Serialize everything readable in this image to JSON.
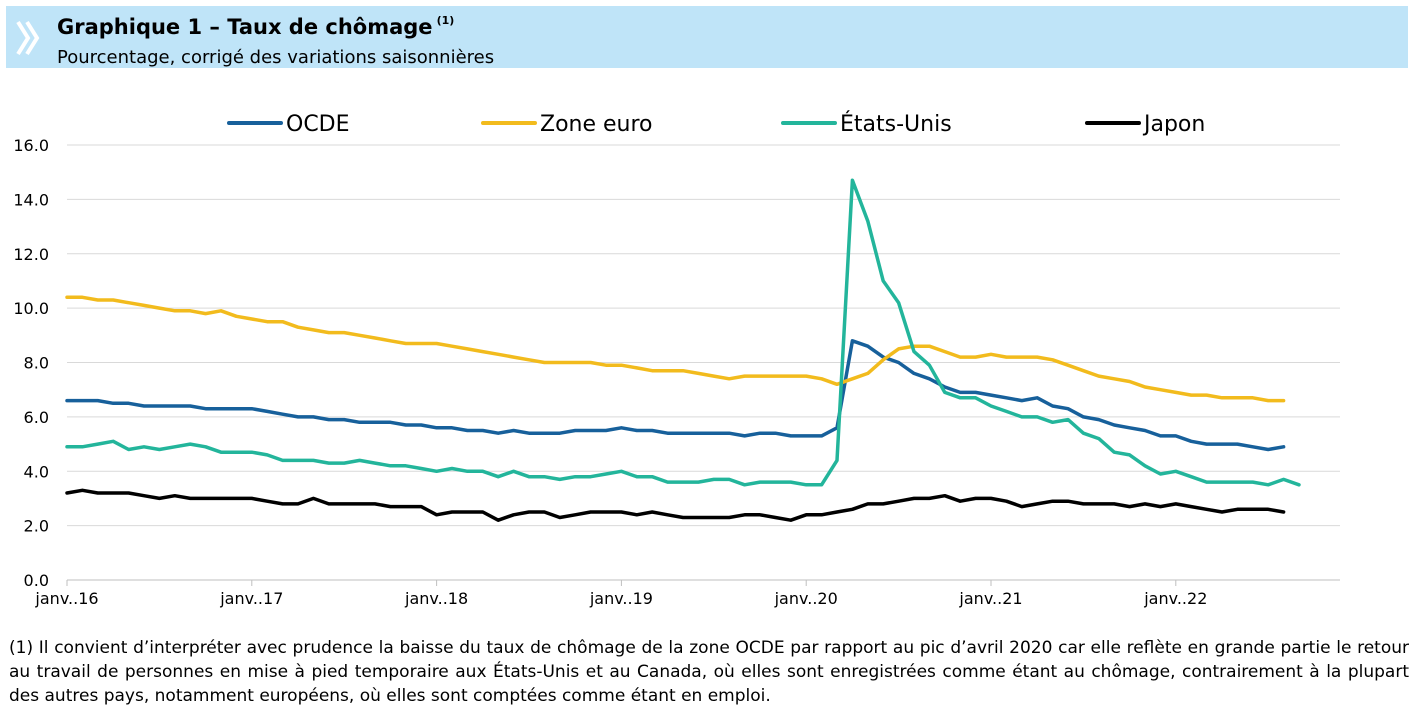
{
  "header": {
    "title": "Graphique 1 – Taux de chômage",
    "title_note": "(1)",
    "subtitle": "Pourcentage, corrigé des variations saisonnières",
    "banner_color": "#bfe4f8"
  },
  "chart_data": {
    "type": "line",
    "title": "Graphique 1 – Taux de chômage (1)",
    "subtitle": "Pourcentage, corrigé des variations saisonnières",
    "x_start": "janv.16",
    "frequency": "monthly",
    "x_tick_labels": [
      "janv..16",
      "janv..17",
      "janv..18",
      "janv..19",
      "janv..20",
      "janv..21",
      "janv..22"
    ],
    "y_tick_labels": [
      "0.0",
      "2.0",
      "4.0",
      "6.0",
      "8.0",
      "10.0",
      "12.0",
      "14.0",
      "16.0"
    ],
    "ylim": [
      0,
      16
    ],
    "grid": true,
    "legend_position": "top",
    "series": [
      {
        "name": "OCDE",
        "color": "#17609b",
        "values": [
          6.6,
          6.6,
          6.6,
          6.5,
          6.5,
          6.4,
          6.4,
          6.4,
          6.4,
          6.3,
          6.3,
          6.3,
          6.3,
          6.2,
          6.1,
          6.0,
          6.0,
          5.9,
          5.9,
          5.8,
          5.8,
          5.8,
          5.7,
          5.7,
          5.6,
          5.6,
          5.5,
          5.5,
          5.4,
          5.5,
          5.4,
          5.4,
          5.4,
          5.5,
          5.5,
          5.5,
          5.6,
          5.5,
          5.5,
          5.4,
          5.4,
          5.4,
          5.4,
          5.4,
          5.3,
          5.4,
          5.4,
          5.3,
          5.3,
          5.3,
          5.6,
          8.8,
          8.6,
          8.2,
          8.0,
          7.6,
          7.4,
          7.1,
          6.9,
          6.9,
          6.8,
          6.7,
          6.6,
          6.7,
          6.4,
          6.3,
          6.0,
          5.9,
          5.7,
          5.6,
          5.5,
          5.3,
          5.3,
          5.1,
          5.0,
          5.0,
          5.0,
          4.9,
          4.8,
          4.9
        ]
      },
      {
        "name": "Zone euro",
        "color": "#f2bb1d",
        "values": [
          10.4,
          10.4,
          10.3,
          10.3,
          10.2,
          10.1,
          10.0,
          9.9,
          9.9,
          9.8,
          9.9,
          9.7,
          9.6,
          9.5,
          9.5,
          9.3,
          9.2,
          9.1,
          9.1,
          9.0,
          8.9,
          8.8,
          8.7,
          8.7,
          8.7,
          8.6,
          8.5,
          8.4,
          8.3,
          8.2,
          8.1,
          8.0,
          8.0,
          8.0,
          8.0,
          7.9,
          7.9,
          7.8,
          7.7,
          7.7,
          7.7,
          7.6,
          7.5,
          7.4,
          7.5,
          7.5,
          7.5,
          7.5,
          7.5,
          7.4,
          7.2,
          7.4,
          7.6,
          8.1,
          8.5,
          8.6,
          8.6,
          8.4,
          8.2,
          8.2,
          8.3,
          8.2,
          8.2,
          8.2,
          8.1,
          7.9,
          7.7,
          7.5,
          7.4,
          7.3,
          7.1,
          7.0,
          6.9,
          6.8,
          6.8,
          6.7,
          6.7,
          6.7,
          6.6,
          6.6
        ]
      },
      {
        "name": "États-Unis",
        "color": "#23b59b",
        "values": [
          4.9,
          4.9,
          5.0,
          5.1,
          4.8,
          4.9,
          4.8,
          4.9,
          5.0,
          4.9,
          4.7,
          4.7,
          4.7,
          4.6,
          4.4,
          4.4,
          4.4,
          4.3,
          4.3,
          4.4,
          4.3,
          4.2,
          4.2,
          4.1,
          4.0,
          4.1,
          4.0,
          4.0,
          3.8,
          4.0,
          3.8,
          3.8,
          3.7,
          3.8,
          3.8,
          3.9,
          4.0,
          3.8,
          3.8,
          3.6,
          3.6,
          3.6,
          3.7,
          3.7,
          3.5,
          3.6,
          3.6,
          3.6,
          3.5,
          3.5,
          4.4,
          14.7,
          13.2,
          11.0,
          10.2,
          8.4,
          7.9,
          6.9,
          6.7,
          6.7,
          6.4,
          6.2,
          6.0,
          6.0,
          5.8,
          5.9,
          5.4,
          5.2,
          4.7,
          4.6,
          4.2,
          3.9,
          4.0,
          3.8,
          3.6,
          3.6,
          3.6,
          3.6,
          3.5,
          3.7,
          3.5
        ]
      },
      {
        "name": "Japon",
        "color": "#000000",
        "values": [
          3.2,
          3.3,
          3.2,
          3.2,
          3.2,
          3.1,
          3.0,
          3.1,
          3.0,
          3.0,
          3.0,
          3.0,
          3.0,
          2.9,
          2.8,
          2.8,
          3.0,
          2.8,
          2.8,
          2.8,
          2.8,
          2.7,
          2.7,
          2.7,
          2.4,
          2.5,
          2.5,
          2.5,
          2.2,
          2.4,
          2.5,
          2.5,
          2.3,
          2.4,
          2.5,
          2.5,
          2.5,
          2.4,
          2.5,
          2.4,
          2.3,
          2.3,
          2.3,
          2.3,
          2.4,
          2.4,
          2.3,
          2.2,
          2.4,
          2.4,
          2.5,
          2.6,
          2.8,
          2.8,
          2.9,
          3.0,
          3.0,
          3.1,
          2.9,
          3.0,
          3.0,
          2.9,
          2.7,
          2.8,
          2.9,
          2.9,
          2.8,
          2.8,
          2.8,
          2.7,
          2.8,
          2.7,
          2.8,
          2.7,
          2.6,
          2.5,
          2.6,
          2.6,
          2.6,
          2.5
        ]
      }
    ]
  },
  "footnote": "(1) Il convient d’interpréter avec prudence la baisse du taux de chômage de la zone OCDE par rapport au pic d’avril 2020 car elle reflète en grande partie le retour au travail de personnes en mise à pied temporaire aux États-Unis et au Canada, où elles sont enregistrées comme étant au chômage, contrairement à la plupart des autres pays, notamment européens, où elles sont comptées comme étant en emploi."
}
